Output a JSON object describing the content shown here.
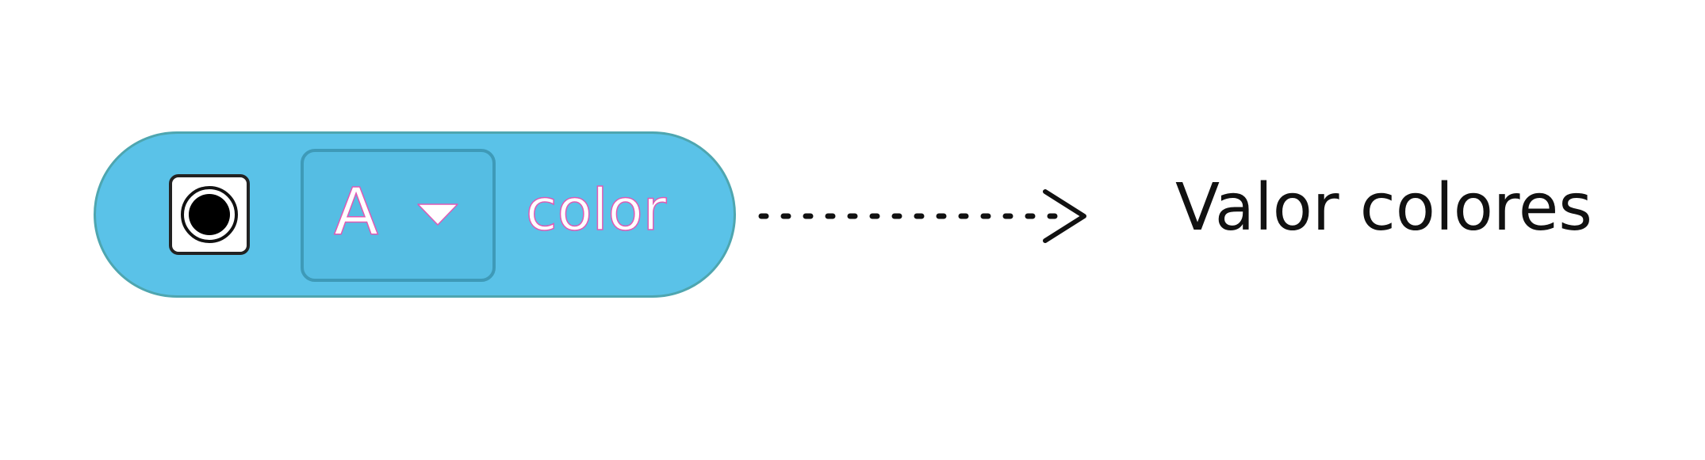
{
  "block": {
    "dropdown_value": "A",
    "field_label": "color",
    "radio_icon": "radio-selected-icon",
    "caret_icon": "caret-down-icon",
    "fill_color": "#5ac2e8",
    "border_color": "#4ea6b0"
  },
  "connector": {
    "style": "dotted-arrow"
  },
  "output": {
    "label": "Valor colores"
  }
}
